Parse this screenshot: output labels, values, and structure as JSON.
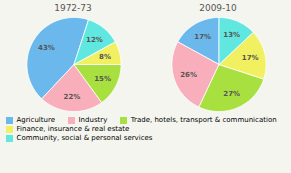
{
  "chart_data": [
    {
      "type": "pie",
      "title": "1972-73",
      "categories": [
        "Agriculture",
        "Industry",
        "Trade, hotels, transport & communication",
        "Finance, insurance & real estate",
        "Community, social & personal services"
      ],
      "values": [
        43,
        22,
        15,
        8,
        12
      ],
      "value_labels": [
        "43%",
        "22%",
        "15%",
        "8%",
        "12%"
      ],
      "colors": [
        "#6BB8EC",
        "#F9AEBB",
        "#A8E040",
        "#F0F060",
        "#60E8E0"
      ],
      "data_labels": true,
      "legend": "bottom"
    },
    {
      "type": "pie",
      "title": "2009-10",
      "categories": [
        "Agriculture",
        "Industry",
        "Trade, hotels, transport & communication",
        "Finance, insurance & real estate",
        "Community, social & personal services"
      ],
      "values": [
        17,
        26,
        27,
        17,
        13
      ],
      "value_labels": [
        "17%",
        "26%",
        "27%",
        "17%",
        "13%"
      ],
      "colors": [
        "#6BB8EC",
        "#F9AEBB",
        "#A8E040",
        "#F0F060",
        "#60E8E0"
      ],
      "data_labels": true,
      "legend": "bottom"
    }
  ]
}
